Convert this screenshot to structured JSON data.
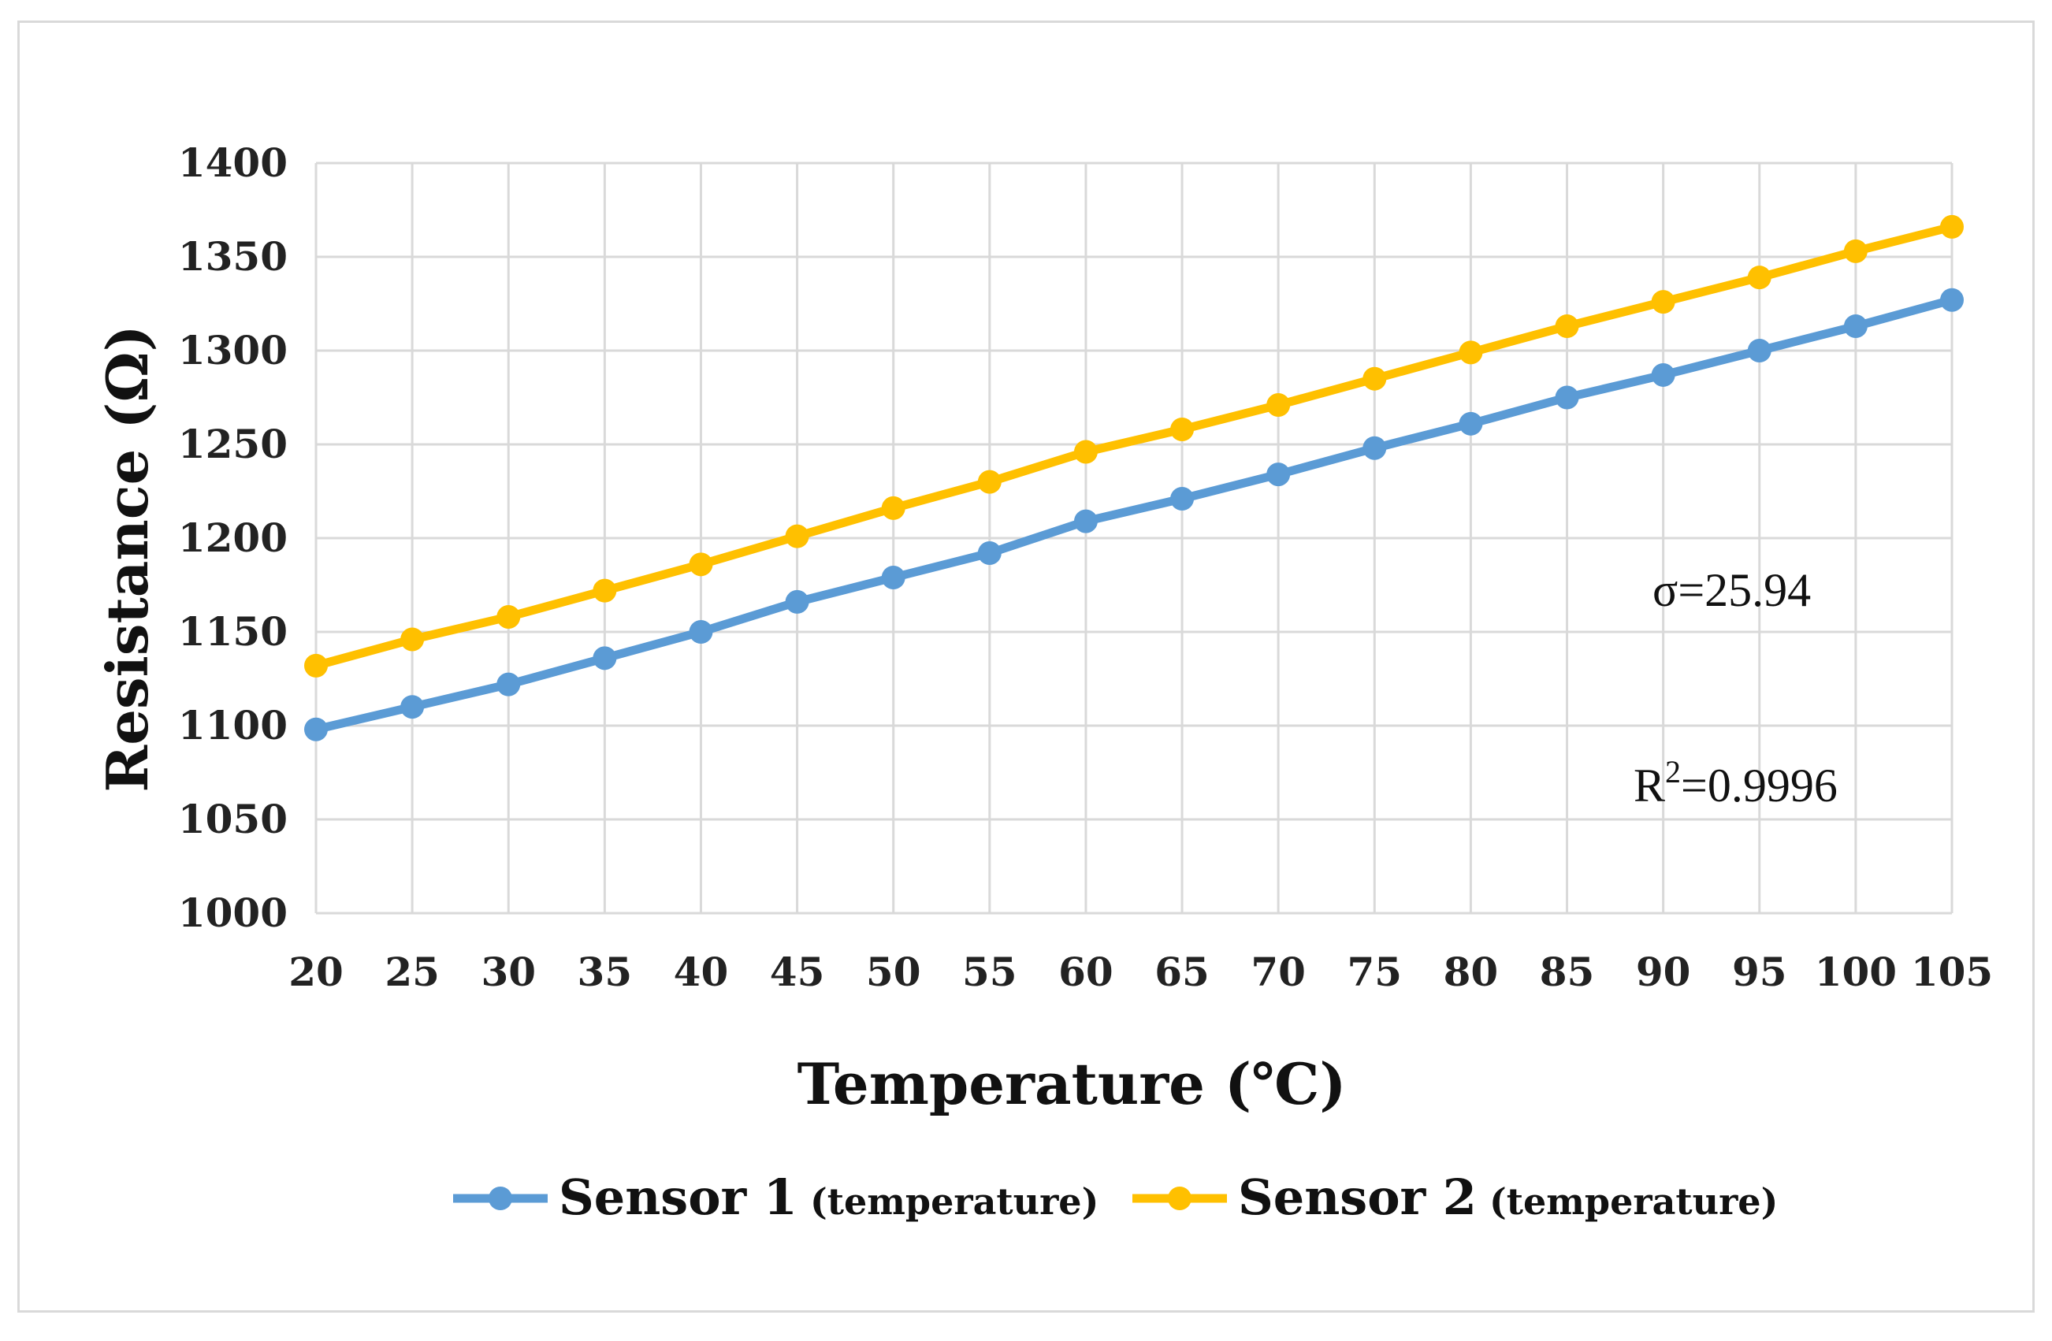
{
  "chart_data": {
    "type": "line",
    "xlabel": "Temperature (℃)",
    "ylabel": "Resistance (Ω)",
    "ylim": [
      1000,
      1400
    ],
    "y_ticks": [
      1000,
      1050,
      1100,
      1150,
      1200,
      1250,
      1300,
      1350,
      1400
    ],
    "x": [
      20,
      25,
      30,
      35,
      40,
      45,
      50,
      55,
      60,
      65,
      70,
      75,
      80,
      85,
      90,
      95,
      100,
      105
    ],
    "grid": true,
    "legend_position": "bottom",
    "series": [
      {
        "name": "Sensor 1",
        "qualifier": "(temperature)",
        "color": "#5b9bd5",
        "values": [
          1098,
          1110,
          1122,
          1136,
          1150,
          1166,
          1179,
          1192,
          1209,
          1221,
          1234,
          1248,
          1261,
          1275,
          1287,
          1300,
          1313,
          1327
        ]
      },
      {
        "name": "Sensor 2",
        "qualifier": "(temperature)",
        "color": "#ffc000",
        "values": [
          1132,
          1146,
          1158,
          1172,
          1186,
          1201,
          1216,
          1230,
          1246,
          1258,
          1271,
          1285,
          1299,
          1313,
          1326,
          1339,
          1353,
          1366
        ]
      }
    ],
    "annotations": {
      "sigma": "σ=25.94",
      "r2_prefix": "R",
      "r2_sup": "2",
      "r2_value": "=0.9996"
    }
  }
}
